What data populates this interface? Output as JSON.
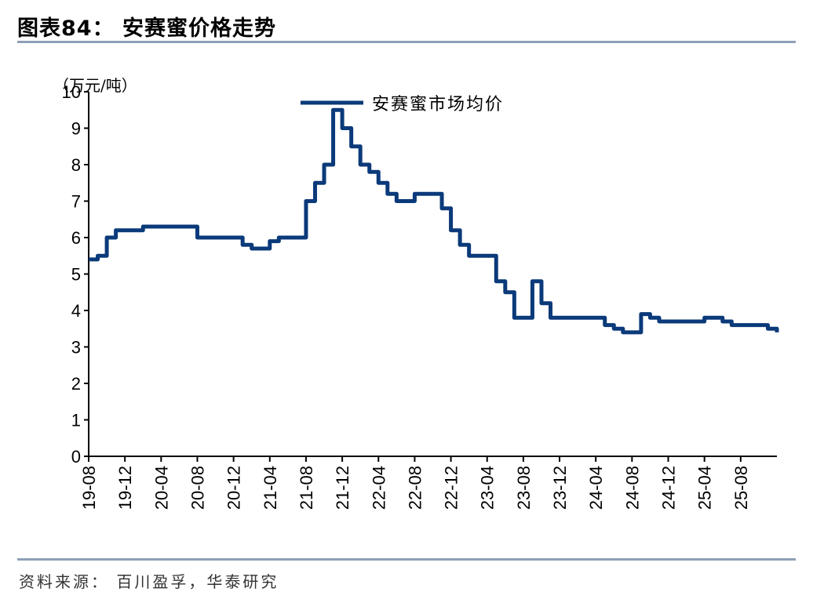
{
  "title": "图表84：   安赛蜜价格走势",
  "source": "资料来源：  百川盈孚，华泰研究",
  "chart_data": {
    "type": "line",
    "unit_label": "（万元/吨）",
    "ylim": [
      0,
      10
    ],
    "yticks": [
      0,
      1,
      2,
      3,
      4,
      5,
      6,
      7,
      8,
      9,
      10
    ],
    "xticks": [
      "19-08",
      "19-12",
      "20-04",
      "20-08",
      "20-12",
      "21-04",
      "21-08",
      "21-12",
      "22-04",
      "22-08",
      "22-12",
      "23-04",
      "23-08",
      "23-12",
      "24-04",
      "24-08",
      "24-12",
      "25-04",
      "25-08"
    ],
    "x_range_months": [
      "2019-08",
      "2025-12"
    ],
    "legend_position": "top-center",
    "series": [
      {
        "name": "安赛蜜市场均价",
        "color": "#0b3a7a",
        "points": [
          [
            "2019-08",
            5.4
          ],
          [
            "2019-09",
            5.5
          ],
          [
            "2019-10",
            6.0
          ],
          [
            "2019-11",
            6.2
          ],
          [
            "2020-02",
            6.3
          ],
          [
            "2020-07",
            6.3
          ],
          [
            "2020-08",
            6.0
          ],
          [
            "2020-12",
            6.0
          ],
          [
            "2021-01",
            5.8
          ],
          [
            "2021-02",
            5.7
          ],
          [
            "2021-04",
            5.9
          ],
          [
            "2021-05",
            6.0
          ],
          [
            "2021-07",
            6.0
          ],
          [
            "2021-08",
            7.0
          ],
          [
            "2021-09",
            7.5
          ],
          [
            "2021-10",
            8.0
          ],
          [
            "2021-11",
            9.5
          ],
          [
            "2021-12",
            9.0
          ],
          [
            "2022-01",
            8.5
          ],
          [
            "2022-02",
            8.0
          ],
          [
            "2022-03",
            7.8
          ],
          [
            "2022-04",
            7.5
          ],
          [
            "2022-05",
            7.2
          ],
          [
            "2022-06",
            7.0
          ],
          [
            "2022-07",
            7.0
          ],
          [
            "2022-08",
            7.2
          ],
          [
            "2022-10",
            7.2
          ],
          [
            "2022-11",
            6.8
          ],
          [
            "2022-12",
            6.2
          ],
          [
            "2023-01",
            5.8
          ],
          [
            "2023-02",
            5.5
          ],
          [
            "2023-04",
            5.5
          ],
          [
            "2023-05",
            4.8
          ],
          [
            "2023-06",
            4.5
          ],
          [
            "2023-07",
            3.8
          ],
          [
            "2023-08",
            3.8
          ],
          [
            "2023-09",
            4.8
          ],
          [
            "2023-10",
            4.2
          ],
          [
            "2023-11",
            3.8
          ],
          [
            "2024-04",
            3.8
          ],
          [
            "2024-05",
            3.6
          ],
          [
            "2024-06",
            3.5
          ],
          [
            "2024-07",
            3.4
          ],
          [
            "2024-08",
            3.4
          ],
          [
            "2024-09",
            3.9
          ],
          [
            "2024-10",
            3.8
          ],
          [
            "2024-11",
            3.7
          ],
          [
            "2025-03",
            3.7
          ],
          [
            "2025-04",
            3.8
          ],
          [
            "2025-05",
            3.8
          ],
          [
            "2025-06",
            3.7
          ],
          [
            "2025-07",
            3.6
          ],
          [
            "2025-10",
            3.6
          ],
          [
            "2025-11",
            3.5
          ],
          [
            "2025-12",
            3.4
          ]
        ]
      }
    ]
  }
}
